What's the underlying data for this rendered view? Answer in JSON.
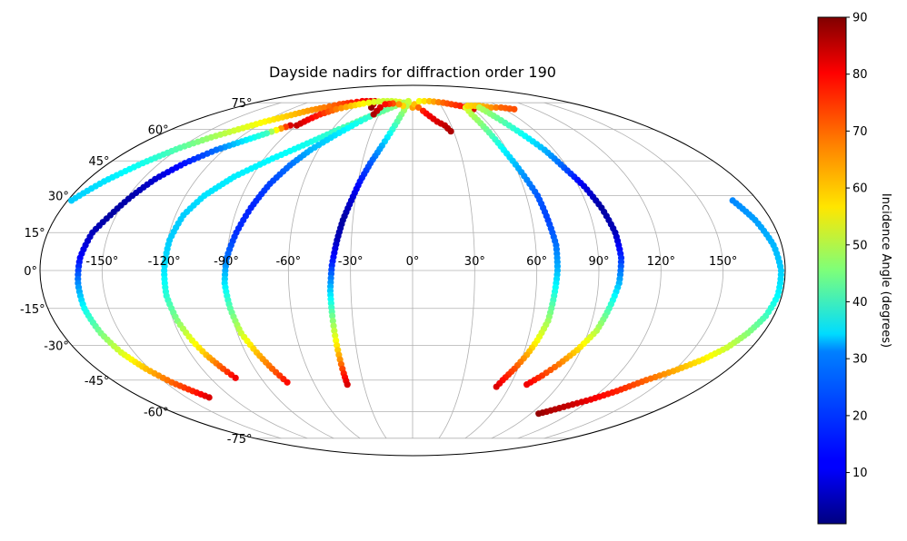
{
  "chart_data": {
    "type": "scatter",
    "projection": "mollweide",
    "title": "Dayside nadirs for diffraction order 190",
    "xlabel": "",
    "ylabel": "",
    "grid": true,
    "xlim": [
      -180,
      180
    ],
    "ylim": [
      -90,
      90
    ],
    "lon_ticks": [
      -150,
      -120,
      -90,
      -60,
      -30,
      0,
      30,
      60,
      90,
      120,
      150
    ],
    "lon_tick_labels": [
      "-150°",
      "-120°",
      "-90°",
      "-60°",
      "-30°",
      "0°",
      "30°",
      "60°",
      "90°",
      "120°",
      "150°"
    ],
    "lat_ticks": [
      -75,
      -60,
      -45,
      -30,
      -15,
      0,
      15,
      30,
      45,
      60,
      75
    ],
    "lat_tick_labels": [
      "-75°",
      "-60°",
      "-45°",
      "-30°",
      "-15°",
      "0°",
      "15°",
      "30°",
      "45°",
      "60°",
      "75°"
    ],
    "colorbar": {
      "label": "Incidence Angle (degrees)",
      "colormap": "jet",
      "vmin": 1,
      "vmax": 90,
      "ticks": [
        10,
        20,
        30,
        40,
        50,
        60,
        70,
        80,
        90
      ],
      "tick_labels": [
        "10",
        "20",
        "30",
        "40",
        "50",
        "60",
        "70",
        "80",
        "90"
      ]
    },
    "series": [
      {
        "points": [
          [
            -178,
            28,
            30
          ],
          [
            -170,
            36,
            32
          ],
          [
            -160,
            44,
            36
          ],
          [
            -150,
            51,
            42
          ],
          [
            -140,
            56,
            48
          ],
          [
            -130,
            60,
            53
          ],
          [
            -120,
            64,
            57
          ],
          [
            -110,
            67,
            61
          ],
          [
            -100,
            70,
            65
          ],
          [
            -90,
            72,
            68
          ],
          [
            -80,
            74,
            72
          ],
          [
            -70,
            75,
            76
          ],
          [
            -60,
            76,
            79
          ],
          [
            -50,
            76,
            81
          ],
          [
            -45,
            76,
            82
          ],
          [
            -43,
            74,
            84
          ],
          [
            -42,
            72,
            88
          ]
        ]
      },
      {
        "points": [
          [
            -90,
            62,
            84
          ],
          [
            -87,
            65,
            80
          ],
          [
            -83,
            68,
            76
          ],
          [
            -75,
            71,
            68
          ],
          [
            -65,
            73,
            62
          ],
          [
            -55,
            74.5,
            57
          ],
          [
            -45,
            75.5,
            54
          ],
          [
            -35,
            76,
            52
          ],
          [
            -25,
            76,
            52
          ],
          [
            -15,
            75.5,
            54
          ],
          [
            -5,
            74,
            58
          ],
          [
            0,
            72,
            65
          ]
        ]
      },
      {
        "points": [
          [
            -95,
            62,
            82
          ],
          [
            -105,
            58,
            40
          ],
          [
            -115,
            54,
            32
          ],
          [
            -125,
            50,
            22
          ],
          [
            -135,
            44,
            14
          ],
          [
            -143,
            37,
            8
          ],
          [
            -148,
            30,
            5
          ],
          [
            -153,
            22,
            4
          ],
          [
            -158,
            15,
            6
          ],
          [
            -161,
            5,
            12
          ],
          [
            -162,
            -5,
            24
          ],
          [
            -162,
            -15,
            35
          ],
          [
            -160,
            -25,
            45
          ],
          [
            -157,
            -33,
            53
          ],
          [
            -152,
            -40,
            62
          ],
          [
            -146,
            -46,
            70
          ],
          [
            -140,
            -50,
            76
          ],
          [
            -135,
            -53,
            82
          ]
        ]
      },
      {
        "points": [
          [
            -18,
            74,
            50
          ],
          [
            -28,
            70,
            48
          ],
          [
            -40,
            66,
            44
          ],
          [
            -55,
            60,
            40
          ],
          [
            -70,
            53,
            36
          ],
          [
            -85,
            46,
            34
          ],
          [
            -100,
            38,
            33
          ],
          [
            -110,
            30,
            32
          ],
          [
            -116,
            22,
            30
          ],
          [
            -119,
            12,
            30
          ],
          [
            -120,
            0,
            32
          ],
          [
            -120,
            -10,
            38
          ],
          [
            -118,
            -20,
            46
          ],
          [
            -115,
            -28,
            55
          ],
          [
            -112,
            -34,
            62
          ],
          [
            -108,
            -40,
            72
          ],
          [
            -105,
            -44,
            80
          ]
        ]
      },
      {
        "points": [
          [
            -5,
            76,
            52
          ],
          [
            -15,
            74,
            48
          ],
          [
            -25,
            71,
            44
          ],
          [
            -35,
            68,
            40
          ],
          [
            -45,
            63,
            36
          ],
          [
            -55,
            57,
            32
          ],
          [
            -65,
            50,
            28
          ],
          [
            -72,
            43,
            22
          ],
          [
            -78,
            35,
            18
          ],
          [
            -83,
            25,
            15
          ],
          [
            -87,
            15,
            16
          ],
          [
            -90,
            5,
            22
          ],
          [
            -91,
            -5,
            32
          ],
          [
            -90,
            -15,
            42
          ],
          [
            -88,
            -25,
            52
          ],
          [
            -84,
            -33,
            62
          ],
          [
            -80,
            -40,
            70
          ],
          [
            -76,
            -46,
            78
          ]
        ]
      },
      {
        "points": [
          [
            -5,
            75,
            52
          ],
          [
            -10,
            68,
            46
          ],
          [
            -15,
            60,
            38
          ],
          [
            -20,
            52,
            28
          ],
          [
            -25,
            44,
            20
          ],
          [
            -29,
            36,
            14
          ],
          [
            -32,
            28,
            8
          ],
          [
            -35,
            20,
            4
          ],
          [
            -37,
            12,
            6
          ],
          [
            -39,
            2,
            16
          ],
          [
            -40,
            -8,
            30
          ],
          [
            -40,
            -18,
            44
          ],
          [
            -40,
            -28,
            56
          ],
          [
            -40,
            -36,
            66
          ],
          [
            -40,
            -42,
            76
          ],
          [
            -40,
            -47,
            82
          ]
        ]
      },
      {
        "points": [
          [
            -10,
            73,
            60
          ],
          [
            -15,
            74,
            66
          ],
          [
            -22,
            74.5,
            72
          ],
          [
            -30,
            74,
            78
          ],
          [
            -33,
            72,
            82
          ],
          [
            -34,
            70,
            84
          ],
          [
            -35,
            68,
            86
          ]
        ]
      },
      {
        "points": [
          [
            2,
            74,
            62
          ],
          [
            6,
            72,
            70
          ],
          [
            10,
            70,
            76
          ],
          [
            15,
            67,
            80
          ],
          [
            20,
            64,
            82
          ],
          [
            25,
            62,
            84
          ],
          [
            28,
            59,
            86
          ]
        ]
      },
      {
        "points": [
          [
            8,
            76,
            56
          ],
          [
            20,
            76,
            62
          ],
          [
            35,
            75,
            70
          ],
          [
            50,
            73,
            76
          ],
          [
            60,
            71,
            82
          ]
        ]
      },
      {
        "points": [
          [
            54,
            72,
            54
          ],
          [
            53,
            68,
            50
          ],
          [
            55,
            60,
            44
          ],
          [
            58,
            50,
            34
          ],
          [
            62,
            40,
            26
          ],
          [
            66,
            30,
            20
          ],
          [
            68,
            20,
            18
          ],
          [
            70,
            10,
            22
          ],
          [
            70,
            0,
            28
          ],
          [
            69,
            -10,
            38
          ],
          [
            68,
            -20,
            48
          ],
          [
            65,
            -28,
            56
          ],
          [
            62,
            -34,
            64
          ],
          [
            58,
            -40,
            72
          ],
          [
            54,
            -45,
            78
          ],
          [
            52,
            -48,
            82
          ]
        ]
      },
      {
        "points": [
          [
            58,
            73,
            60
          ],
          [
            70,
            73,
            62
          ],
          [
            80,
            72,
            66
          ],
          [
            90,
            72,
            70
          ],
          [
            100,
            71,
            72
          ]
        ]
      },
      {
        "points": [
          [
            68,
            72,
            50
          ],
          [
            72,
            66,
            44
          ],
          [
            78,
            58,
            36
          ],
          [
            84,
            50,
            28
          ],
          [
            88,
            42,
            20
          ],
          [
            93,
            34,
            10
          ],
          [
            97,
            25,
            4
          ],
          [
            100,
            15,
            6
          ],
          [
            101,
            5,
            16
          ],
          [
            100,
            -5,
            28
          ],
          [
            97,
            -15,
            40
          ],
          [
            94,
            -24,
            50
          ],
          [
            88,
            -32,
            60
          ],
          [
            82,
            -38,
            68
          ],
          [
            76,
            -43,
            74
          ],
          [
            70,
            -47,
            80
          ]
        ]
      },
      {
        "points": [
          [
            167,
            28,
            24
          ],
          [
            172,
            20,
            26
          ],
          [
            176,
            10,
            28
          ],
          [
            178,
            0,
            30
          ],
          [
            178,
            -10,
            34
          ],
          [
            176,
            -18,
            40
          ],
          [
            172,
            -25,
            46
          ],
          [
            167,
            -31,
            52
          ],
          [
            160,
            -36,
            58
          ],
          [
            150,
            -41,
            64
          ],
          [
            140,
            -45,
            70
          ],
          [
            130,
            -50,
            76
          ],
          [
            120,
            -54,
            80
          ],
          [
            110,
            -57,
            84
          ],
          [
            100,
            -60,
            86
          ],
          [
            96,
            -61,
            88
          ]
        ]
      }
    ]
  }
}
